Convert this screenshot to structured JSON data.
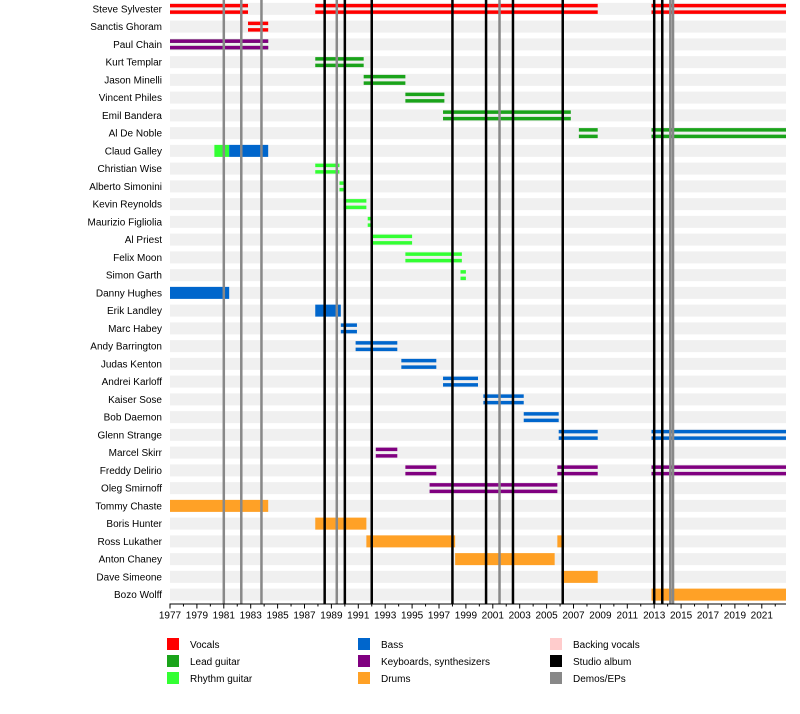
{
  "chart_data": {
    "type": "timeline",
    "x_range": [
      1977,
      2022.8
    ],
    "ticks": [
      1977,
      1979,
      1981,
      1983,
      1985,
      1987,
      1989,
      1991,
      1993,
      1995,
      1997,
      1999,
      2001,
      2003,
      2005,
      2007,
      2009,
      2011,
      2013,
      2015,
      2017,
      2019,
      2021
    ],
    "tick_labels": [
      "1977",
      "1979",
      "1981",
      "1983",
      "1985",
      "1987",
      "1989",
      "1991",
      "1993",
      "1995",
      "1997",
      "1999",
      "2001",
      "2003",
      "2005",
      "2007",
      "2009",
      "2011",
      "2013",
      "2015",
      "2017",
      "2019",
      "2021"
    ],
    "colors": {
      "vocals": "#ff0000",
      "lead": "#1aa31a",
      "rhythm": "#33ff33",
      "bass": "#0066cc",
      "keys": "#800080",
      "drums": "#ffa126",
      "backing": "#ffcccc",
      "studio": "#000000",
      "demo": "#888888"
    },
    "members": [
      {
        "name": "Steve Sylvester",
        "bars": [
          {
            "role": "vocals",
            "start": 1977,
            "end": 1982.8
          },
          {
            "role": "vocals",
            "start": 1987.8,
            "end": 2008.8
          },
          {
            "role": "vocals",
            "start": 2012.8,
            "end": 2022.8
          }
        ]
      },
      {
        "name": "Sanctis Ghoram",
        "bars": [
          {
            "role": "vocals",
            "start": 1982.8,
            "end": 1984.3
          }
        ]
      },
      {
        "name": "Paul Chain",
        "bars": [
          {
            "role": "lead",
            "start": 1977,
            "end": 1984.3
          },
          {
            "role": "keys",
            "start": 1977,
            "end": 1984.3
          }
        ]
      },
      {
        "name": "Kurt Templar",
        "bars": [
          {
            "role": "lead",
            "start": 1987.8,
            "end": 1991.4
          }
        ]
      },
      {
        "name": "Jason Minelli",
        "bars": [
          {
            "role": "lead",
            "start": 1991.4,
            "end": 1994.5
          }
        ]
      },
      {
        "name": "Vincent Philes",
        "bars": [
          {
            "role": "lead",
            "start": 1994.5,
            "end": 1997.4
          }
        ]
      },
      {
        "name": "Emil Bandera",
        "bars": [
          {
            "role": "lead",
            "start": 1997.3,
            "end": 2006.8
          }
        ]
      },
      {
        "name": "Al De Noble",
        "bars": [
          {
            "role": "lead",
            "start": 2007.4,
            "end": 2008.8
          },
          {
            "role": "lead",
            "start": 2012.8,
            "end": 2022.8
          }
        ]
      },
      {
        "name": "Claud Galley",
        "bars": [
          {
            "role": "rhythm",
            "start": 1980.3,
            "end": 1981.4,
            "solid": true
          },
          {
            "role": "bass",
            "start": 1981.4,
            "end": 1984.3,
            "solid": true
          }
        ]
      },
      {
        "name": "Christian Wise",
        "bars": [
          {
            "role": "rhythm",
            "start": 1987.8,
            "end": 1989.6
          }
        ]
      },
      {
        "name": "Alberto Simonini",
        "bars": [
          {
            "role": "rhythm",
            "start": 1989.6,
            "end": 1989.9
          }
        ]
      },
      {
        "name": "Kevin Reynolds",
        "bars": [
          {
            "role": "rhythm",
            "start": 1989.9,
            "end": 1991.6
          }
        ]
      },
      {
        "name": "Maurizio Figliolia",
        "bars": [
          {
            "role": "rhythm",
            "start": 1991.7,
            "end": 1992.0
          }
        ]
      },
      {
        "name": "Al Priest",
        "bars": [
          {
            "role": "rhythm",
            "start": 1992.0,
            "end": 1995.0
          }
        ]
      },
      {
        "name": "Felix Moon",
        "bars": [
          {
            "role": "rhythm",
            "start": 1994.5,
            "end": 1998.7
          }
        ]
      },
      {
        "name": "Simon Garth",
        "bars": [
          {
            "role": "rhythm",
            "start": 1998.6,
            "end": 1999.0
          }
        ]
      },
      {
        "name": "Danny Hughes",
        "bars": [
          {
            "role": "bass",
            "start": 1977,
            "end": 1981.4,
            "solid": true
          }
        ]
      },
      {
        "name": "Erik Landley",
        "bars": [
          {
            "role": "bass",
            "start": 1987.8,
            "end": 1989.7,
            "solid": true
          }
        ]
      },
      {
        "name": "Marc Habey",
        "bars": [
          {
            "role": "bass",
            "start": 1989.7,
            "end": 1990.9
          }
        ]
      },
      {
        "name": "Andy Barrington",
        "bars": [
          {
            "role": "bass",
            "start": 1990.8,
            "end": 1993.9
          }
        ]
      },
      {
        "name": "Judas Kenton",
        "bars": [
          {
            "role": "bass",
            "start": 1994.2,
            "end": 1996.8
          }
        ]
      },
      {
        "name": "Andrei Karloff",
        "bars": [
          {
            "role": "bass",
            "start": 1997.3,
            "end": 1999.9
          }
        ]
      },
      {
        "name": "Kaiser Sose",
        "bars": [
          {
            "role": "bass",
            "start": 2000.3,
            "end": 2003.3
          }
        ]
      },
      {
        "name": "Bob Daemon",
        "bars": [
          {
            "role": "bass",
            "start": 2003.3,
            "end": 2005.9
          }
        ]
      },
      {
        "name": "Glenn Strange",
        "bars": [
          {
            "role": "bass",
            "start": 2005.9,
            "end": 2008.8
          },
          {
            "role": "bass",
            "start": 2012.8,
            "end": 2022.8
          }
        ]
      },
      {
        "name": "Marcel Skirr",
        "bars": [
          {
            "role": "keys",
            "start": 1992.3,
            "end": 1993.9
          }
        ]
      },
      {
        "name": "Freddy Delirio",
        "bars": [
          {
            "role": "keys",
            "start": 1994.5,
            "end": 1996.8
          },
          {
            "role": "keys",
            "start": 2005.8,
            "end": 2008.8
          },
          {
            "role": "keys",
            "start": 2012.8,
            "end": 2022.8
          }
        ]
      },
      {
        "name": "Oleg Smirnoff",
        "bars": [
          {
            "role": "keys",
            "start": 1996.3,
            "end": 2005.8
          }
        ]
      },
      {
        "name": "Tommy Chaste",
        "bars": [
          {
            "role": "drums",
            "start": 1977,
            "end": 1984.3,
            "solid": true
          }
        ]
      },
      {
        "name": "Boris Hunter",
        "bars": [
          {
            "role": "drums",
            "start": 1987.8,
            "end": 1991.6,
            "solid": true
          }
        ]
      },
      {
        "name": "Ross Lukather",
        "bars": [
          {
            "role": "drums",
            "start": 1991.6,
            "end": 1998.2,
            "solid": true
          },
          {
            "role": "drums",
            "start": 2005.8,
            "end": 2006.3,
            "solid": true
          }
        ]
      },
      {
        "name": "Anton Chaney",
        "bars": [
          {
            "role": "drums",
            "start": 1998.2,
            "end": 2005.6,
            "solid": true
          }
        ]
      },
      {
        "name": "Dave Simeone",
        "bars": [
          {
            "role": "drums",
            "start": 2006.1,
            "end": 2008.8,
            "solid": true
          }
        ]
      },
      {
        "name": "Bozo Wolff",
        "bars": [
          {
            "role": "drums",
            "start": 2012.8,
            "end": 2022.8,
            "solid": true
          }
        ]
      }
    ],
    "studio_albums": [
      1988.5,
      1990.0,
      1992.0,
      1998.0,
      2000.5,
      2002.5,
      2006.2,
      2013.0,
      2013.6
    ],
    "demos": [
      1981.0,
      1982.3,
      1983.8,
      1989.4,
      2001.5,
      2014.2,
      2014.4
    ],
    "legend": [
      {
        "label": "Vocals",
        "color": "#ff0000"
      },
      {
        "label": "Lead guitar",
        "color": "#1aa31a"
      },
      {
        "label": "Rhythm guitar",
        "color": "#33ff33"
      },
      {
        "label": "Bass",
        "color": "#0066cc"
      },
      {
        "label": "Keyboards, synthesizers",
        "color": "#800080"
      },
      {
        "label": "Drums",
        "color": "#ffa126"
      },
      {
        "label": "Backing vocals",
        "color": "#ffcccc"
      },
      {
        "label": "Studio album",
        "color": "#000000"
      },
      {
        "label": "Demos/EPs",
        "color": "#888888"
      }
    ]
  }
}
